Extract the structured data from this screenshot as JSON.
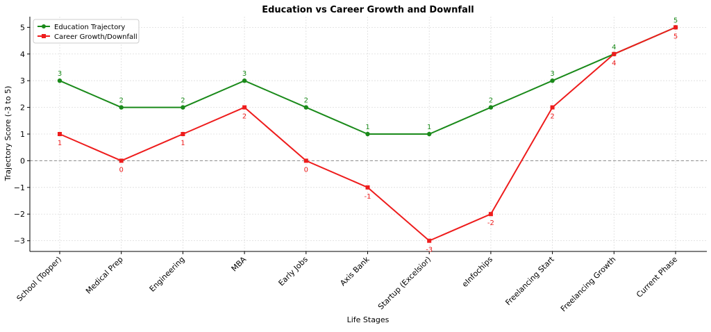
{
  "chart_data": {
    "type": "line",
    "title": "Education vs Career Growth and Downfall",
    "xlabel": "Life Stages",
    "ylabel": "Trajectory Score (-3 to 5)",
    "categories": [
      "School (Topper)",
      "Medical Prep",
      "Engineering",
      "MBA",
      "Early Jobs",
      "Axis Bank",
      "Startup (Excelsior)",
      "eInfochips",
      "Freelancing Start",
      "Freelancing Growth",
      "Current Phase"
    ],
    "y_ticks": [
      -3,
      -2,
      -1,
      0,
      1,
      2,
      3,
      4,
      5
    ],
    "y_tick_labels": [
      "−3",
      "−2",
      "−1",
      "0",
      "1",
      "2",
      "3",
      "4",
      "5"
    ],
    "ylim": [
      -3.4,
      5.4
    ],
    "grid": true,
    "zero_line": true,
    "legend_position": "top-left",
    "series": [
      {
        "name": "Education Trajectory",
        "color": "#1a8a1a",
        "marker": "circle",
        "values": [
          3,
          2,
          2,
          3,
          2,
          1,
          1,
          2,
          3,
          4,
          5
        ],
        "labels": [
          "3",
          "2",
          "2",
          "3",
          "2",
          "1",
          "1",
          "2",
          "3",
          "4",
          "5"
        ],
        "label_position": "above"
      },
      {
        "name": "Career Growth/Downfall",
        "color": "#ee1c1c",
        "marker": "square",
        "values": [
          1,
          0,
          1,
          2,
          0,
          -1,
          -3,
          -2,
          2,
          4,
          5
        ],
        "labels": [
          "1",
          "0",
          "1",
          "2",
          "0",
          "-1",
          "-3",
          "-2",
          "2",
          "4",
          "5"
        ],
        "label_position": "below"
      }
    ]
  }
}
